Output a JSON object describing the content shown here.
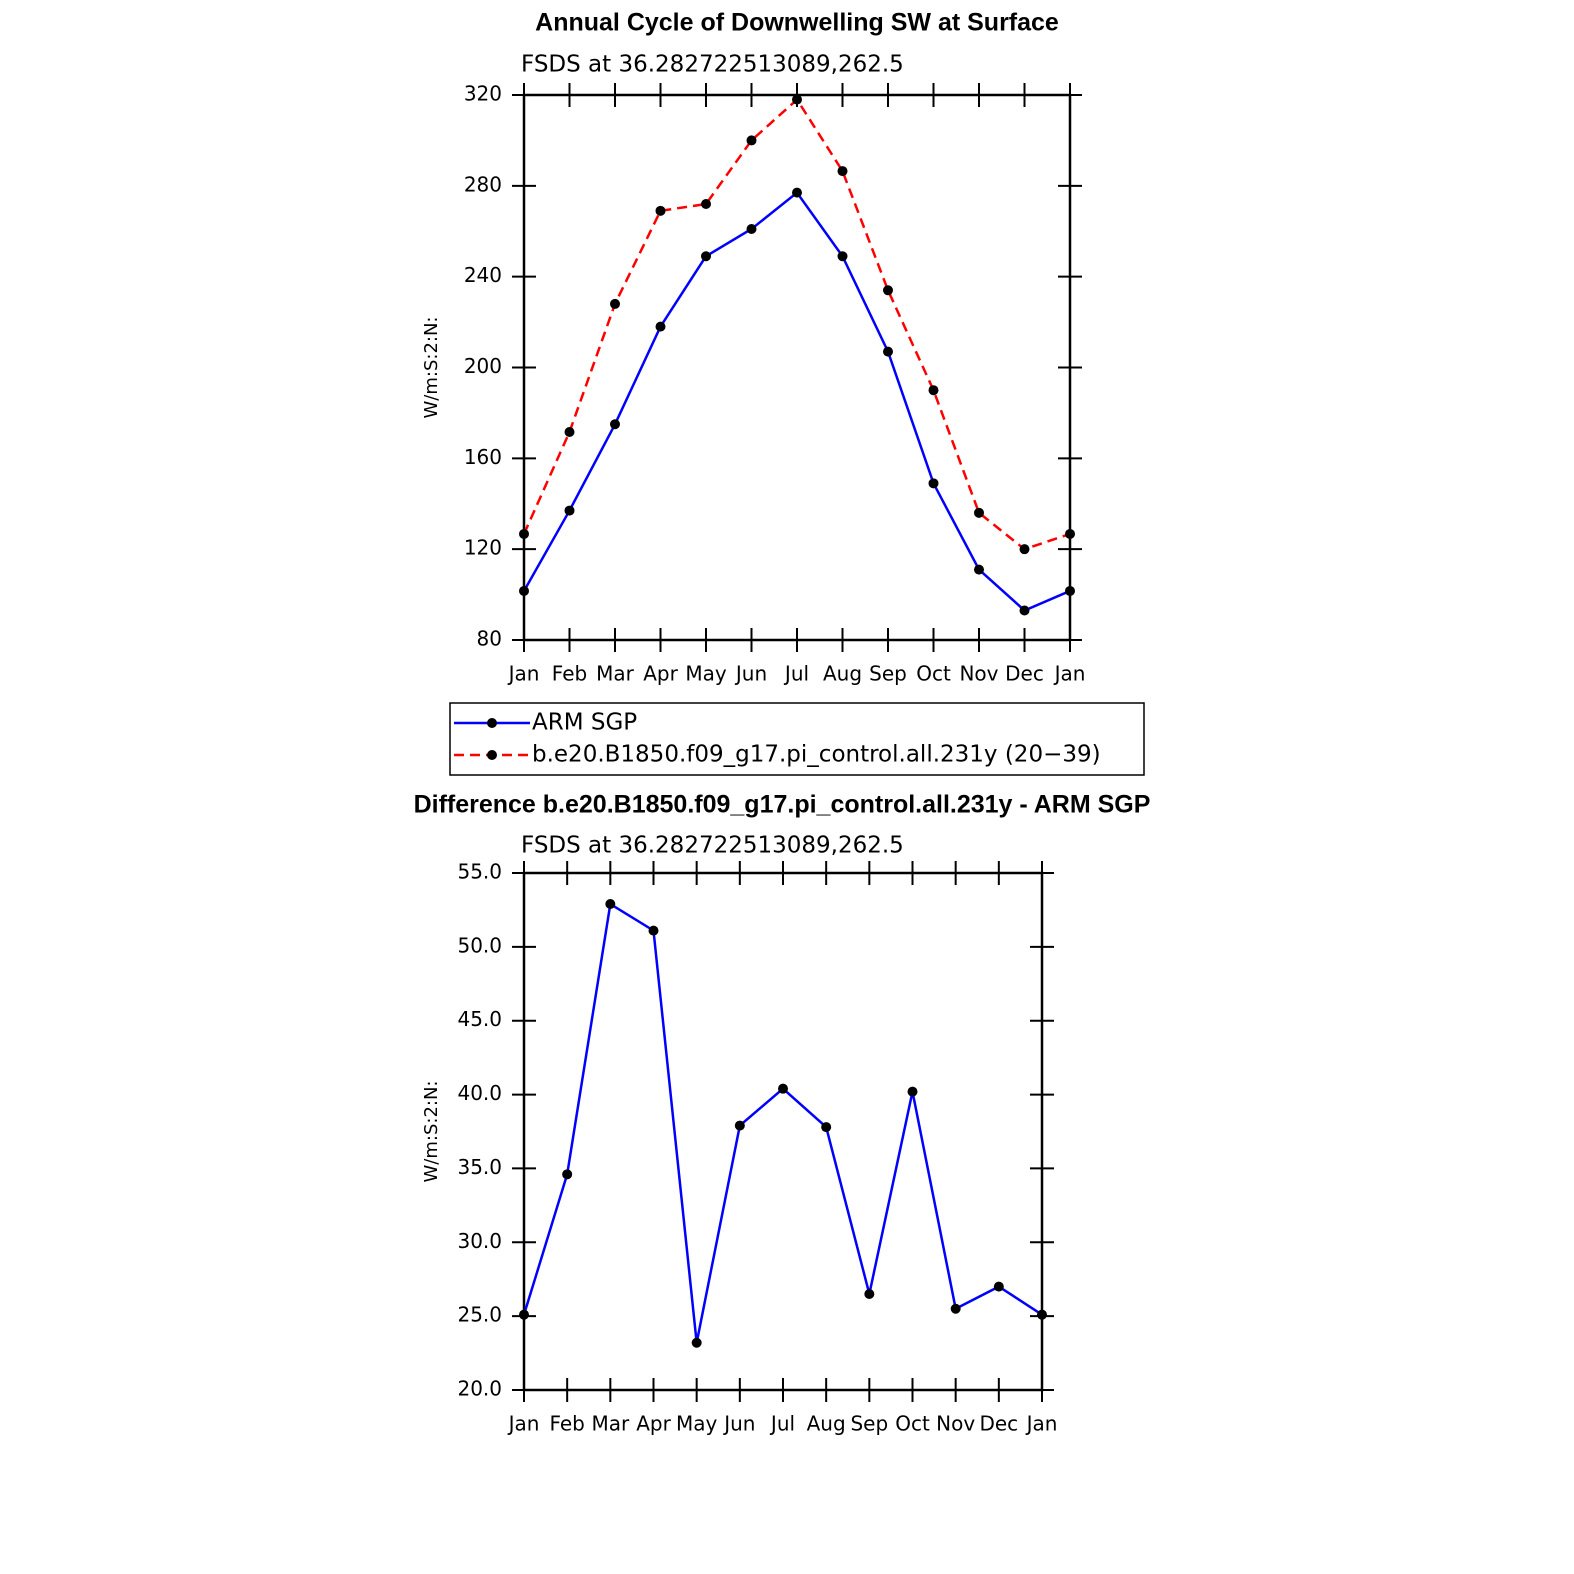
{
  "chart_data": [
    {
      "type": "line",
      "title": "Annual Cycle of Downwelling SW at Surface",
      "subtitle": "FSDS at 36.282722513089,262.5",
      "y_label": "W/m:S:2:N:",
      "categories": [
        "Jan",
        "Feb",
        "Mar",
        "Apr",
        "May",
        "Jun",
        "Jul",
        "Aug",
        "Sep",
        "Oct",
        "Nov",
        "Dec",
        "Jan"
      ],
      "series": [
        {
          "name": "ARM SGP",
          "color": "#0000ff",
          "line_style": "solid",
          "values": [
            101.6,
            137,
            175,
            218,
            249,
            261,
            277,
            249,
            207,
            149,
            111,
            93,
            101.6
          ]
        },
        {
          "name": "b.e20.B1850.f09_g17.pi_control.all.231y (20−39)",
          "color": "#ff0000",
          "line_style": "dashed",
          "values": [
            126.7,
            171.6,
            228,
            269,
            272,
            300,
            318,
            286.5,
            234,
            190,
            136,
            120,
            126.7
          ]
        }
      ],
      "ylim": [
        80,
        320
      ],
      "yticks": [
        80,
        120,
        160,
        200,
        240,
        280,
        320
      ],
      "legend": "bottom"
    },
    {
      "type": "line",
      "title": "Difference b.e20.B1850.f09_g17.pi_control.all.231y - ARM SGP",
      "subtitle": "FSDS at 36.282722513089,262.5",
      "y_label": "W/m:S:2:N:",
      "categories": [
        "Jan",
        "Feb",
        "Mar",
        "Apr",
        "May",
        "Jun",
        "Jul",
        "Aug",
        "Sep",
        "Oct",
        "Nov",
        "Dec",
        "Jan"
      ],
      "color": "#0000ff",
      "values": [
        25.1,
        34.6,
        52.9,
        51.1,
        23.2,
        37.9,
        40.4,
        37.8,
        26.5,
        40.2,
        25.5,
        27.0,
        25.1
      ],
      "ylim": [
        20,
        55
      ],
      "yticks": [
        {
          "value": 20,
          "label": "20.0"
        },
        {
          "value": 25,
          "label": "25.0"
        },
        {
          "value": 30,
          "label": "30.0"
        },
        {
          "value": 35,
          "label": "35.0"
        },
        {
          "value": 40,
          "label": "40.0"
        },
        {
          "value": 45,
          "label": "45.0"
        },
        {
          "value": 50,
          "label": "50.0"
        },
        {
          "value": 55,
          "label": "55.0"
        }
      ]
    }
  ]
}
